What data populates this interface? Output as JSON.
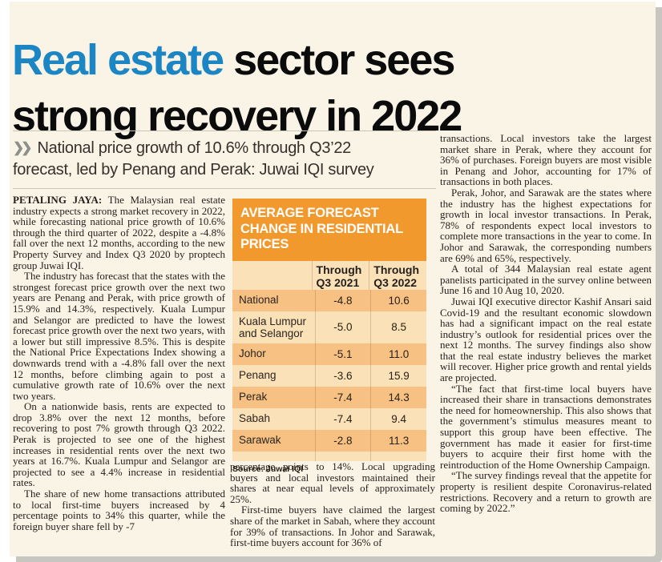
{
  "page": {
    "background": "#faf4e7",
    "edge_color": "#ffffff",
    "shadow_color": "#c8c6c1"
  },
  "headline": {
    "accent": "Real estate",
    "rest": " sector sees",
    "line2": "strong recovery in 2022",
    "accent_color": "#1b86c3",
    "text_color": "#0b0b0b"
  },
  "standfirst": {
    "icon_glyph": "❯❯",
    "line1": "National price growth of 10.6% through Q3’22",
    "line2": "forecast, led by Penang and Perak: Juwai IQI survey"
  },
  "table": {
    "title": "AVERAGE FORECAST CHANGE IN RESIDENTIAL PRICES",
    "columns": [
      "Through Q3 2021",
      "Through Q3 2022"
    ],
    "rows": [
      {
        "label": "National",
        "q3_2021": "-4.8",
        "q3_2022": "10.6"
      },
      {
        "label": "Kuala Lumpur and Selangor",
        "q3_2021": "-5.0",
        "q3_2022": "8.5"
      },
      {
        "label": "Johor",
        "q3_2021": "-5.1",
        "q3_2022": "11.0"
      },
      {
        "label": "Penang",
        "q3_2021": "-3.6",
        "q3_2022": "15.9"
      },
      {
        "label": "Perak",
        "q3_2021": "-7.4",
        "q3_2022": "14.3"
      },
      {
        "label": "Sabah",
        "q3_2021": "-7.4",
        "q3_2022": "9.4"
      },
      {
        "label": "Sarawak",
        "q3_2021": "-2.8",
        "q3_2022": "11.3"
      }
    ],
    "source": "Source: Juwai IQI",
    "header_bg": "#f2992d",
    "row_dark": "#f6c183",
    "row_light": "#fbe1b7"
  },
  "article": {
    "col1": [
      {
        "lead": "PETALING JAYA:",
        "text": "The Malaysian real estate industry expects a strong market recovery in 2022, while forecasting national price growth of 10.6% through the third quarter of 2022, despite a -4.8% fall over the next 12 months, according to the new Property Survey and Index Q3 2020 by proptech group Juwai IQI."
      },
      {
        "text": "The industry has forecast that the states with the strongest forecast price growth over the next two years are Penang and Perak, with price growth of 15.9% and 14.3%, respectively. Kuala Lumpur and Selangor are predicted to have the lowest forecast price growth over the next two years, with a lower but still impressive 8.5%. This is despite the National Price Expectations Index showing a downwards trend with a -4.8% fall over the next 12 months, before climbing again to post a cumulative growth rate of 10.6% over the next two years."
      },
      {
        "text": "On a nationwide basis, rents are expected to drop 3.8% over the next 12 months, before recovering to post 7% growth through Q3 2022. Perak is projected to see one of the highest increases in residential rents over the next two years at 16.7%. Kuala Lumpur and Selangor are projected to see a 4.4% increase in residential rates."
      },
      {
        "text": "The share of new home transactions attributed to local first-time buyers increased by 4 percentage points to 34% this quarter, while the foreign buyer share fell by -7"
      }
    ],
    "col2": [
      {
        "text": "percentage points to 14%. Local upgrading buyers and local investors maintained their shares at near equal levels of approximately 25%."
      },
      {
        "text": "First-time buyers have claimed the largest share of the market in Sabah, where they account for 39% of transactions. In Johor and Sarawak, first-time buyers account for 36% of"
      }
    ],
    "col3": [
      {
        "text": "transactions. Local investors take the largest market share in Perak, where they account for 36% of purchases. Foreign buyers are most visible in Penang and Johor, accounting for 17% of transactions in both places."
      },
      {
        "text": "Perak, Johor, and Sarawak are the states where the industry has the highest expectations for growth in local investor transactions. In Perak, 78% of respondents expect local investors to complete more transactions in the year to come. In Johor and Sarawak, the corresponding numbers are 69% and 65%, respectively."
      },
      {
        "text": "A total of 344 Malaysian real estate agent panelists participated in the survey online between June 16 and 10 Aug 10, 2020."
      },
      {
        "text": "Juwai IQI executive director Kashif Ansari said Covid-19 and the resultant economic slowdown has had a significant impact on the real estate industry’s outlook for residential prices over the next 12 months. The survey findings also show that the real estate industry believes the market will recover. Higher price growth and rental yields are projected."
      },
      {
        "text": "“The fact that first-time local buyers have increased their share in transactions demonstrates the need for homeownership. This also shows that the government’s stimulus measures meant to support this group have been effective. The government has made it easier for first-time buyers to acquire their first home with the reintroduction of the Home Ownership Campaign."
      },
      {
        "text": "“The survey findings reveal that the appetite for property is resilient despite Coronavirus-related restrictions. Recovery and a return to growth are coming by 2022.”"
      }
    ]
  }
}
